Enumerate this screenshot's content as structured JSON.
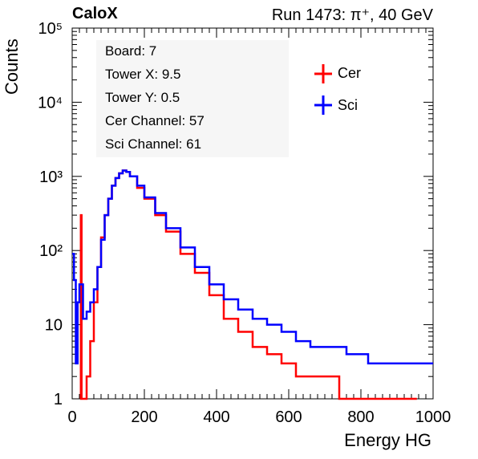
{
  "header": {
    "left_title": "CaloX",
    "run_label": "Run 1473:",
    "beam_label": "π⁺, 40 GeV"
  },
  "info": {
    "board": "Board: 7",
    "tower_x": "Tower X: 9.5",
    "tower_y": "Tower Y: 0.5",
    "cer_channel": "Cer Channel: 57",
    "sci_channel": "Sci Channel: 61"
  },
  "chart_data": {
    "type": "line",
    "xlabel": "Energy HG",
    "ylabel": "Counts",
    "xlim": [
      0,
      1000
    ],
    "ylim": [
      1,
      100000
    ],
    "yscale": "log",
    "grid": false,
    "legend_position": "top-right",
    "x_ticks": [
      "0",
      "200",
      "400",
      "600",
      "800",
      "1000"
    ],
    "y_ticks": [
      "1",
      "10",
      "10²",
      "10³",
      "10⁴",
      "10⁵"
    ],
    "series": [
      {
        "name": "Cer",
        "color": "#ff0000",
        "points": [
          [
            22,
            1
          ],
          [
            24,
            300
          ],
          [
            26,
            1
          ],
          [
            30,
            1
          ],
          [
            40,
            2
          ],
          [
            50,
            6
          ],
          [
            60,
            20
          ],
          [
            70,
            60
          ],
          [
            80,
            150
          ],
          [
            90,
            300
          ],
          [
            100,
            500
          ],
          [
            110,
            750
          ],
          [
            120,
            950
          ],
          [
            130,
            1100
          ],
          [
            140,
            1200
          ],
          [
            150,
            1150
          ],
          [
            160,
            1000
          ],
          [
            180,
            700
          ],
          [
            200,
            500
          ],
          [
            230,
            300
          ],
          [
            260,
            180
          ],
          [
            300,
            90
          ],
          [
            340,
            50
          ],
          [
            380,
            25
          ],
          [
            420,
            12
          ],
          [
            460,
            8
          ],
          [
            500,
            5
          ],
          [
            540,
            4
          ],
          [
            580,
            3
          ],
          [
            620,
            2
          ],
          [
            660,
            2
          ],
          [
            700,
            2
          ],
          [
            740,
            1
          ],
          [
            800,
            1
          ],
          [
            860,
            1
          ],
          [
            950,
            1
          ]
        ]
      },
      {
        "name": "Sci",
        "color": "#0000ff",
        "points": [
          [
            0,
            90
          ],
          [
            5,
            40
          ],
          [
            10,
            3
          ],
          [
            15,
            20
          ],
          [
            20,
            35
          ],
          [
            30,
            12
          ],
          [
            40,
            15
          ],
          [
            50,
            20
          ],
          [
            60,
            30
          ],
          [
            70,
            60
          ],
          [
            80,
            140
          ],
          [
            90,
            300
          ],
          [
            100,
            500
          ],
          [
            110,
            750
          ],
          [
            120,
            950
          ],
          [
            130,
            1100
          ],
          [
            140,
            1200
          ],
          [
            150,
            1150
          ],
          [
            160,
            1000
          ],
          [
            180,
            750
          ],
          [
            200,
            520
          ],
          [
            230,
            320
          ],
          [
            260,
            200
          ],
          [
            300,
            110
          ],
          [
            340,
            60
          ],
          [
            380,
            35
          ],
          [
            420,
            22
          ],
          [
            460,
            16
          ],
          [
            500,
            12
          ],
          [
            540,
            10
          ],
          [
            580,
            8
          ],
          [
            620,
            6
          ],
          [
            660,
            5
          ],
          [
            700,
            5
          ],
          [
            760,
            4
          ],
          [
            820,
            3
          ],
          [
            880,
            3
          ],
          [
            940,
            3
          ],
          [
            1000,
            3
          ]
        ]
      }
    ]
  }
}
